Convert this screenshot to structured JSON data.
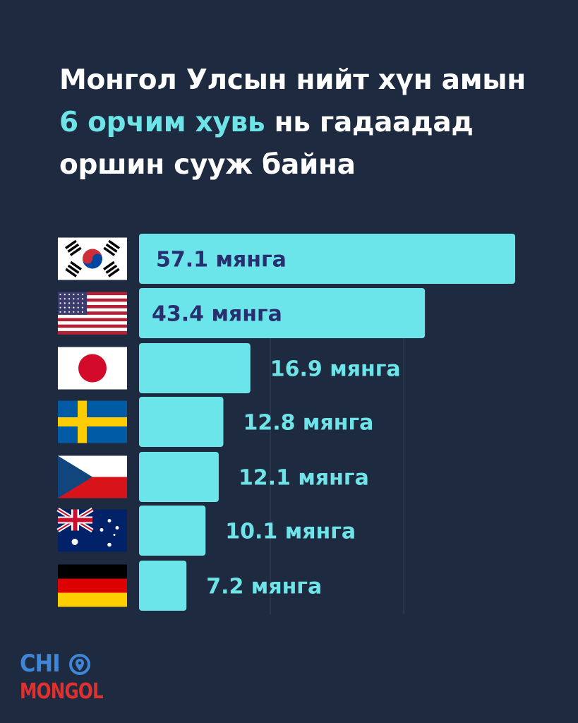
{
  "headline": {
    "line1": "Монгол Улсын нийт хүн амын",
    "line2_highlight": "6 орчим хувь",
    "line2_rest": " нь гадаадад",
    "line3": "оршин сууж байна"
  },
  "colors": {
    "background": "#1e2a40",
    "bar": "#6ce5ea",
    "label_inside": "#27306e",
    "label_outside": "#6ee3e8",
    "highlight": "#6ee3e8"
  },
  "chart_data": {
    "type": "bar",
    "orientation": "horizontal",
    "categories": [
      "south-korea-flag",
      "usa-flag",
      "japan-flag",
      "sweden-flag",
      "czech-flag",
      "australia-flag",
      "germany-flag"
    ],
    "values": [
      57.1,
      43.4,
      16.9,
      12.8,
      12.1,
      10.1,
      7.2
    ],
    "labels": [
      "57.1 мянга",
      "43.4 мянга",
      "16.9 мянга",
      "12.8 мянга",
      "12.1 мянга",
      "10.1 мянга",
      "7.2 мянга"
    ],
    "xlim": [
      0,
      60
    ],
    "grid": true
  },
  "logo": {
    "top": "CHI",
    "bottom": "MONGOL"
  }
}
